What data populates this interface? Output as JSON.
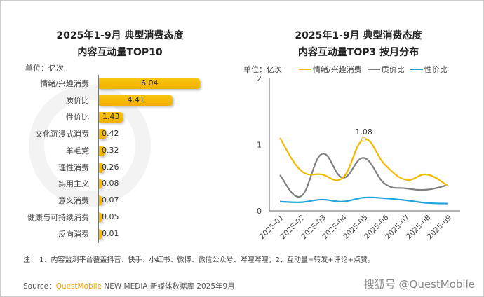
{
  "left_chart": {
    "title_line1": "2025年1-9月 典型消费态度",
    "title_line2": "内容互动量TOP10",
    "unit": "单位：亿次"
  },
  "right_chart": {
    "title_line1": "2025年1-9月 典型消费态度",
    "title_line2": "内容互动量TOP3 按月分布",
    "unit": "单位：亿次"
  },
  "watermark": "QUESTMOBILE",
  "chart_data": [
    {
      "type": "bar",
      "orientation": "horizontal",
      "categories": [
        "情绪/兴趣消费",
        "质价比",
        "性价比",
        "文化沉浸式消费",
        "羊毛党",
        "理性消费",
        "实用主义",
        "意义消费",
        "健康与可持续消费",
        "反向消费"
      ],
      "values": [
        6.04,
        4.41,
        1.43,
        0.42,
        0.32,
        0.26,
        0.08,
        0.07,
        0.05,
        0.01
      ],
      "value_labels": [
        "6.04",
        "4.41",
        "1.43",
        "0.42",
        "0.32",
        "0.26",
        "0.08",
        "0.07",
        "0.05",
        "0.01"
      ],
      "color": "#f5b800"
    },
    {
      "type": "line",
      "categories": [
        "2025-01",
        "2025-02",
        "2025-03",
        "2025-04",
        "2025-05",
        "2025-06",
        "2025-07",
        "2025-08",
        "2025-09"
      ],
      "ylim": [
        0,
        2
      ],
      "yticks": [
        "0",
        "1",
        "2"
      ],
      "legend": "top",
      "series": [
        {
          "name": "情绪/兴趣消费",
          "color": "#f5b800",
          "values": [
            1.1,
            0.61,
            0.55,
            0.5,
            1.08,
            0.7,
            0.47,
            0.55,
            0.38
          ]
        },
        {
          "name": "质价比",
          "color": "#7f7f7f",
          "values": [
            0.54,
            0.22,
            0.86,
            0.5,
            0.8,
            0.41,
            0.34,
            0.32,
            0.39
          ]
        },
        {
          "name": "性价比",
          "color": "#1fa3d9",
          "values": [
            0.14,
            0.13,
            0.17,
            0.14,
            0.2,
            0.19,
            0.16,
            0.12,
            0.11
          ]
        }
      ],
      "annotations": [
        {
          "series": "情绪/兴趣消费",
          "x": "2025-05",
          "label": "1.08"
        }
      ]
    }
  ],
  "note": "注：  1、内容监测平台覆盖抖音、快手、小红书、微博、微信公众号、哔哩哔哩；2、互动量=转发+评论+点赞。",
  "source": {
    "prefix": "Source：",
    "brand": "QuestMobile",
    "rest": " NEW MEDIA 新媒体数据库 2025年9月"
  },
  "credit": "搜狐号 @QuestMobile"
}
